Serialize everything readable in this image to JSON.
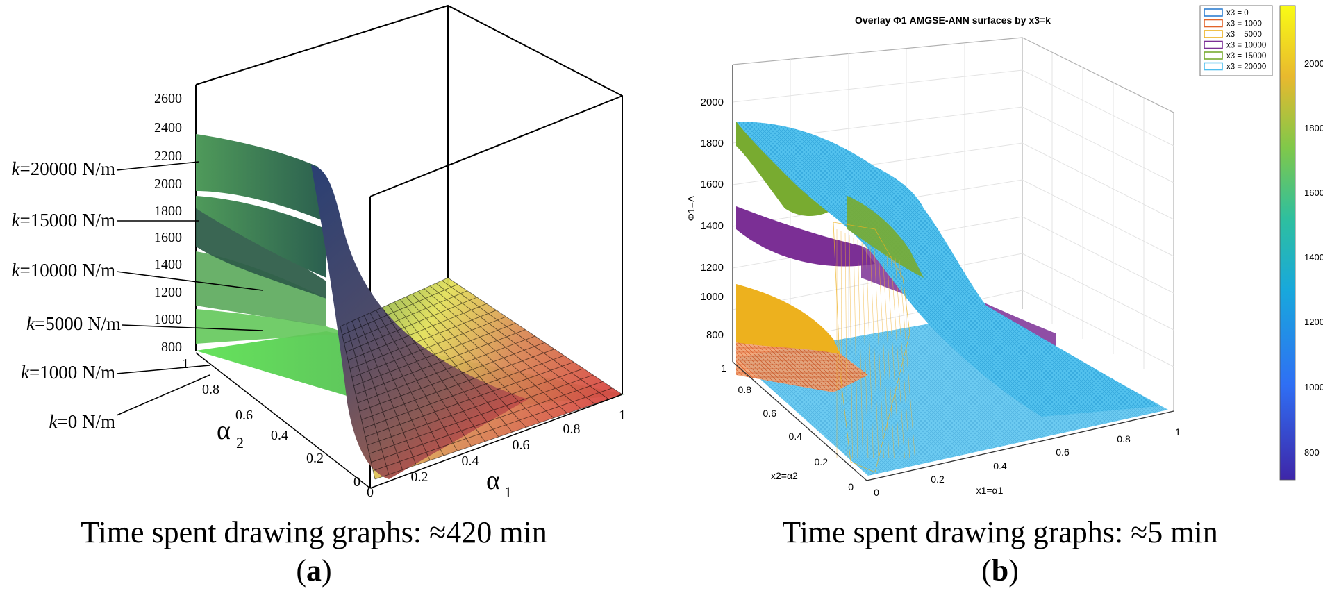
{
  "panel_a": {
    "caption": "Time spent drawing graphs: ≈420 min",
    "label": "a",
    "chart_data": {
      "type": "surface",
      "xlabel": "α",
      "xlabel_sub": "1",
      "ylabel": "α",
      "ylabel_sub": "2",
      "x_ticks": [
        "0",
        "0.2",
        "0.4",
        "0.6",
        "0.8",
        "1"
      ],
      "y_ticks": [
        "0",
        "0.2",
        "0.4",
        "0.6",
        "0.8",
        "1"
      ],
      "z_ticks": [
        "800",
        "1000",
        "1200",
        "1400",
        "1600",
        "1800",
        "2000",
        "2200",
        "2400",
        "2600"
      ],
      "xlim": [
        0,
        1
      ],
      "ylim": [
        0,
        1
      ],
      "zlim": [
        700,
        2700
      ],
      "series": [
        {
          "name": "k=0 N/m",
          "max_value": 800
        },
        {
          "name": "k=1000 N/m",
          "max_value": 870
        },
        {
          "name": "k=5000 N/m",
          "max_value": 1080
        },
        {
          "name": "k=10000 N/m",
          "max_value": 1500
        },
        {
          "name": "k=15000 N/m",
          "max_value": 1900
        },
        {
          "name": "k=20000 N/m",
          "max_value": 2350
        }
      ],
      "series_labels": [
        {
          "prefix": "k",
          "rest": "=20000 N/m"
        },
        {
          "prefix": "k",
          "rest": "=15000 N/m"
        },
        {
          "prefix": "k",
          "rest": "=10000 N/m"
        },
        {
          "prefix": "k",
          "rest": "=5000 N/m"
        },
        {
          "prefix": "k",
          "rest": "=1000 N/m"
        },
        {
          "prefix": "k",
          "rest": "=0 N/m"
        }
      ],
      "grid": false,
      "colormap": "rainbow-shaded"
    }
  },
  "panel_b": {
    "caption": "Time spent drawing graphs: ≈5 min",
    "label": "b",
    "chart_data": {
      "type": "surface",
      "title": "Overlay Φ1 AMGSE-ANN surfaces by x3=k",
      "xlabel": "x1=α1",
      "ylabel": "x2=α2",
      "zlabel": "Φ1=A",
      "x_ticks": [
        "0",
        "0.2",
        "0.4",
        "0.6",
        "0.8",
        "1"
      ],
      "y_ticks": [
        "0",
        "0.2",
        "0.4",
        "0.6",
        "0.8",
        "1"
      ],
      "z_ticks": [
        "800",
        "1000",
        "1200",
        "1400",
        "1600",
        "1800",
        "2000"
      ],
      "xlim": [
        0,
        1
      ],
      "ylim": [
        0,
        1
      ],
      "zlim": [
        700,
        2150
      ],
      "series": [
        {
          "name": "x3 = 0",
          "color": "#2f7fd0",
          "max_value": 780
        },
        {
          "name": "x3 = 1000",
          "color": "#e2642a",
          "max_value": 850
        },
        {
          "name": "x3 = 5000",
          "color": "#edb11e",
          "max_value": 1070
        },
        {
          "name": "x3 = 10000",
          "color": "#7b2f95",
          "max_value": 1480
        },
        {
          "name": "x3 = 15000",
          "color": "#78ab30",
          "max_value": 1900
        },
        {
          "name": "x3 = 20000",
          "color": "#4dbeee",
          "max_value": 1900
        }
      ],
      "colorbar": {
        "ticks": [
          "800",
          "1000",
          "1200",
          "1400",
          "1600",
          "1800",
          "2000"
        ],
        "range": [
          700,
          2150
        ]
      },
      "legend_position": "top-right",
      "grid": true
    }
  }
}
